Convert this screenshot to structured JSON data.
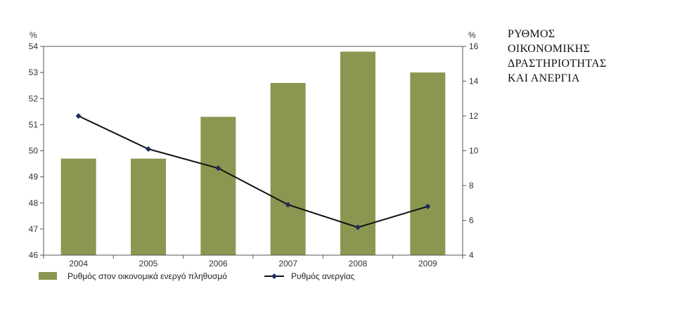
{
  "side_title": {
    "lines": [
      "ΡΥΘΜΟΣ",
      "ΟΙΚΟΝΟΜΙΚΗΣ",
      "ΔΡΑΣΤΗΡΙΟΤΗΤΑΣ",
      "ΚΑΙ ΑΝΕΡΓΙΑ"
    ]
  },
  "chart_data": {
    "type": "bar",
    "categories": [
      "2004",
      "2005",
      "2006",
      "2007",
      "2008",
      "2009"
    ],
    "series": [
      {
        "name": "Ρυθμός στον οικονομικά ενεργό πληθυσμό",
        "type": "bar",
        "axis": "left",
        "values": [
          49.7,
          49.7,
          51.3,
          52.6,
          53.8,
          53.0
        ],
        "color": "#8b9751"
      },
      {
        "name": "Ρυθμός ανεργίας",
        "type": "line",
        "axis": "right",
        "values": [
          12.0,
          10.1,
          9.0,
          6.9,
          5.6,
          6.8
        ],
        "color": "#111111",
        "marker_color": "#1f2a5c"
      }
    ],
    "y_left": {
      "unit": "%",
      "ylim": [
        46,
        54
      ],
      "ticks": [
        46,
        47,
        48,
        49,
        50,
        51,
        52,
        53,
        54
      ]
    },
    "y_right": {
      "unit": "%",
      "ylim": [
        4,
        16
      ],
      "ticks": [
        4,
        6,
        8,
        10,
        12,
        14,
        16
      ]
    },
    "legend_position": "bottom-left",
    "grid": false
  }
}
